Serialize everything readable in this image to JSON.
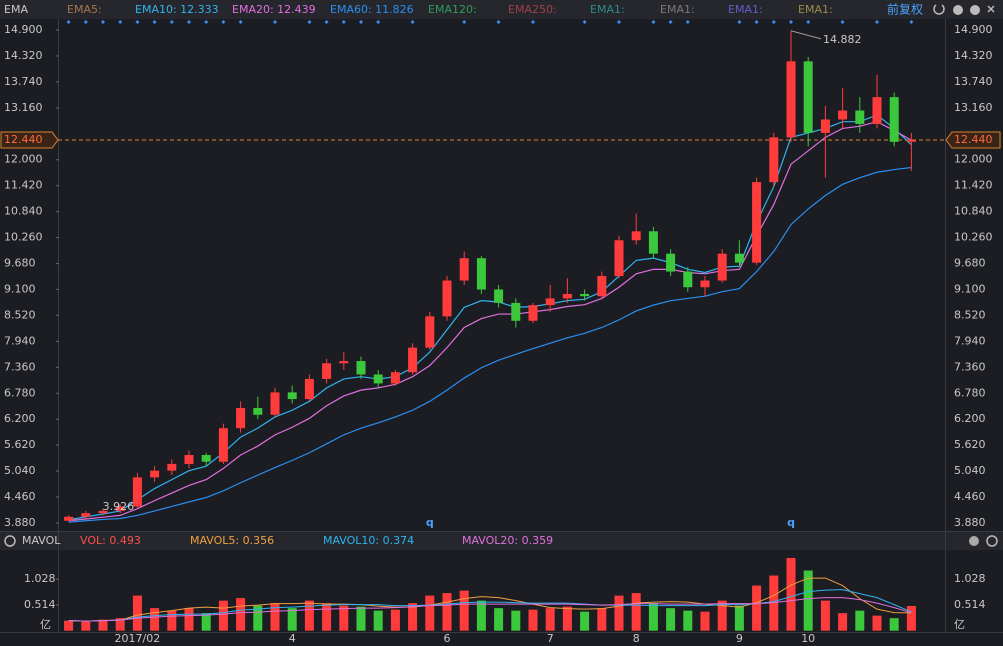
{
  "chart_data": [
    {
      "type": "candlestick",
      "indicator": "EMA",
      "adjust": "前复权",
      "legend": [
        {
          "text": "EMA5:",
          "color": "#a8744e"
        },
        {
          "text": "EMA10: 12.333",
          "color": "#2fb4f0"
        },
        {
          "text": "EMA20: 12.439",
          "color": "#e070e0"
        },
        {
          "text": "EMA60: 11.826",
          "color": "#2a8ff0"
        },
        {
          "text": "EMA120:",
          "color": "#2e9c5a"
        },
        {
          "text": "EMA250:",
          "color": "#a0404a"
        },
        {
          "text": "EMA1:",
          "color": "#2e8a8a"
        },
        {
          "text": "EMA1:",
          "color": "#7a7a7a"
        },
        {
          "text": "EMA1:",
          "color": "#6a5acd"
        },
        {
          "text": "EMA1:",
          "color": "#a08a4a"
        }
      ],
      "up_color": "#ff3b3b",
      "down_color": "#3cc83c",
      "candles": {
        "open": [
          3.93,
          4.02,
          4.1,
          4.15,
          4.25,
          4.9,
          5.05,
          5.2,
          5.4,
          5.25,
          6.0,
          6.45,
          6.3,
          6.8,
          6.65,
          7.1,
          7.45,
          7.5,
          7.2,
          7.0,
          7.25,
          7.8,
          8.5,
          9.3,
          9.8,
          9.1,
          8.8,
          8.4,
          8.75,
          8.9,
          9.0,
          8.95,
          9.4,
          10.2,
          10.4,
          9.9,
          9.5,
          9.15,
          9.3,
          9.9,
          9.7,
          11.5,
          12.5,
          14.2,
          12.6,
          12.9,
          13.1,
          12.8,
          13.4,
          12.4
        ],
        "high": [
          4.05,
          4.15,
          4.2,
          4.3,
          5.0,
          5.15,
          5.3,
          5.5,
          5.45,
          6.1,
          6.6,
          6.7,
          6.9,
          6.95,
          7.2,
          7.55,
          7.7,
          7.6,
          7.3,
          7.3,
          7.9,
          8.6,
          9.4,
          9.95,
          9.85,
          9.2,
          8.9,
          8.8,
          9.2,
          9.35,
          9.1,
          9.5,
          10.3,
          10.8,
          10.5,
          10.0,
          9.6,
          9.4,
          10.0,
          10.2,
          11.6,
          12.6,
          14.882,
          14.3,
          13.2,
          13.6,
          13.4,
          13.9,
          13.5,
          12.6
        ],
        "low": [
          3.926,
          3.98,
          4.05,
          4.1,
          4.2,
          4.8,
          4.95,
          5.1,
          5.15,
          5.2,
          5.9,
          6.2,
          6.25,
          6.55,
          6.6,
          7.0,
          7.3,
          7.1,
          6.9,
          6.95,
          7.2,
          7.75,
          8.4,
          9.2,
          9.0,
          8.7,
          8.25,
          8.35,
          8.6,
          8.8,
          8.85,
          8.9,
          9.35,
          10.1,
          9.8,
          9.4,
          9.05,
          8.95,
          9.25,
          9.6,
          9.65,
          11.4,
          12.4,
          12.3,
          11.6,
          12.7,
          12.6,
          12.7,
          12.3,
          11.75
        ],
        "close": [
          4.02,
          4.1,
          4.15,
          4.25,
          4.9,
          5.05,
          5.2,
          5.4,
          5.25,
          6.0,
          6.45,
          6.3,
          6.8,
          6.65,
          7.1,
          7.45,
          7.5,
          7.2,
          7.0,
          7.25,
          7.8,
          8.5,
          9.3,
          9.8,
          9.1,
          8.8,
          8.4,
          8.75,
          8.9,
          9.0,
          8.95,
          9.4,
          10.2,
          10.4,
          9.9,
          9.5,
          9.15,
          9.3,
          9.9,
          9.7,
          11.5,
          12.5,
          14.2,
          12.6,
          12.9,
          13.1,
          12.8,
          13.4,
          12.4,
          12.44
        ]
      },
      "series": [
        {
          "name": "EMA10",
          "color": "#2fb4f0",
          "values": [
            3.95,
            4.02,
            4.08,
            4.15,
            4.4,
            4.65,
            4.85,
            5.05,
            5.15,
            5.45,
            5.8,
            6.0,
            6.25,
            6.4,
            6.6,
            6.9,
            7.1,
            7.15,
            7.1,
            7.15,
            7.35,
            7.7,
            8.2,
            8.7,
            8.85,
            8.82,
            8.7,
            8.72,
            8.78,
            8.85,
            8.88,
            9.05,
            9.4,
            9.75,
            9.8,
            9.7,
            9.55,
            9.48,
            9.6,
            9.62,
            10.6,
            11.4,
            12.5,
            12.6,
            12.7,
            12.85,
            12.85,
            13.0,
            12.7,
            12.333
          ]
        },
        {
          "name": "EMA20",
          "color": "#e070e0",
          "values": [
            3.93,
            3.97,
            4.01,
            4.05,
            4.2,
            4.38,
            4.55,
            4.72,
            4.85,
            5.1,
            5.4,
            5.6,
            5.85,
            6.02,
            6.22,
            6.5,
            6.72,
            6.85,
            6.9,
            6.98,
            7.15,
            7.4,
            7.8,
            8.25,
            8.45,
            8.55,
            8.55,
            8.6,
            8.65,
            8.72,
            8.76,
            8.9,
            9.15,
            9.45,
            9.55,
            9.55,
            9.48,
            9.45,
            9.52,
            9.55,
            10.3,
            11.0,
            11.9,
            12.2,
            12.5,
            12.7,
            12.75,
            12.85,
            12.65,
            12.439
          ]
        },
        {
          "name": "EMA60",
          "color": "#2a8ff0",
          "values": [
            3.9,
            3.93,
            3.96,
            3.98,
            4.05,
            4.15,
            4.25,
            4.35,
            4.45,
            4.6,
            4.78,
            4.95,
            5.12,
            5.28,
            5.45,
            5.65,
            5.85,
            6.0,
            6.12,
            6.25,
            6.4,
            6.6,
            6.85,
            7.12,
            7.35,
            7.52,
            7.65,
            7.78,
            7.9,
            8.02,
            8.12,
            8.25,
            8.42,
            8.62,
            8.75,
            8.85,
            8.9,
            8.95,
            9.05,
            9.12,
            9.5,
            9.95,
            10.55,
            10.9,
            11.2,
            11.45,
            11.6,
            11.72,
            11.78,
            11.826
          ]
        }
      ],
      "ylim": [
        3.88,
        14.9
      ],
      "yticks": [
        {
          "value": 3.88,
          "label": "3.880"
        },
        {
          "value": 4.46,
          "label": "4.460"
        },
        {
          "value": 5.04,
          "label": "5.040"
        },
        {
          "value": 5.62,
          "label": "5.620"
        },
        {
          "value": 6.2,
          "label": "6.200"
        },
        {
          "value": 6.78,
          "label": "6.780"
        },
        {
          "value": 7.36,
          "label": "7.360"
        },
        {
          "value": 7.94,
          "label": "7.940"
        },
        {
          "value": 8.52,
          "label": "8.520"
        },
        {
          "value": 9.1,
          "label": "9.100"
        },
        {
          "value": 9.68,
          "label": "9.680"
        },
        {
          "value": 10.26,
          "label": "10.260"
        },
        {
          "value": 10.84,
          "label": "10.840"
        },
        {
          "value": 11.42,
          "label": "11.420"
        },
        {
          "value": 12,
          "label": "12.000"
        },
        {
          "value": 13.16,
          "label": "13.160"
        },
        {
          "value": 13.74,
          "label": "13.740"
        },
        {
          "value": 14.32,
          "label": "14.320"
        },
        {
          "value": 14.9,
          "label": "14.900"
        }
      ],
      "last_price": {
        "value": 12.44,
        "label": "12.440"
      },
      "annotations": [
        {
          "text": "14.882",
          "index": 42
        },
        {
          "text": "3.926",
          "index": 0
        }
      ],
      "signals": [
        {
          "text": "q",
          "index": 21
        },
        {
          "text": "q",
          "index": 42
        }
      ]
    },
    {
      "type": "bar",
      "indicator": "MAVOL",
      "legend": [
        {
          "text": "VOL: 0.493",
          "color": "#ff5050"
        },
        {
          "text": "MAVOL5: 0.356",
          "color": "#f0a040"
        },
        {
          "text": "MAVOL10: 0.374",
          "color": "#2fb4f0"
        },
        {
          "text": "MAVOL20: 0.359",
          "color": "#e070e0"
        }
      ],
      "categories": [
        null,
        null,
        null,
        null,
        "2017/02",
        null,
        null,
        null,
        null,
        null,
        null,
        null,
        null,
        "4",
        null,
        null,
        null,
        null,
        null,
        null,
        null,
        null,
        "6",
        null,
        null,
        null,
        null,
        null,
        "7",
        null,
        null,
        null,
        null,
        "8",
        null,
        null,
        null,
        null,
        null,
        "9",
        null,
        null,
        null,
        "10",
        null,
        null,
        null,
        null,
        null,
        null
      ],
      "values": [
        0.2,
        0.18,
        0.22,
        0.25,
        0.7,
        0.45,
        0.4,
        0.45,
        0.35,
        0.6,
        0.65,
        0.5,
        0.55,
        0.45,
        0.6,
        0.55,
        0.5,
        0.48,
        0.4,
        0.42,
        0.55,
        0.7,
        0.75,
        0.8,
        0.6,
        0.45,
        0.4,
        0.42,
        0.45,
        0.48,
        0.38,
        0.45,
        0.7,
        0.75,
        0.55,
        0.45,
        0.4,
        0.38,
        0.6,
        0.5,
        0.9,
        1.1,
        1.45,
        1.2,
        0.6,
        0.35,
        0.4,
        0.3,
        0.25,
        0.493
      ],
      "series": [
        {
          "name": "MAVOL5",
          "color": "#f0a040",
          "values": [
            0.2,
            0.19,
            0.2,
            0.21,
            0.31,
            0.36,
            0.4,
            0.45,
            0.47,
            0.45,
            0.49,
            0.51,
            0.54,
            0.54,
            0.55,
            0.53,
            0.53,
            0.52,
            0.49,
            0.47,
            0.47,
            0.51,
            0.57,
            0.64,
            0.68,
            0.66,
            0.6,
            0.53,
            0.46,
            0.44,
            0.43,
            0.44,
            0.49,
            0.55,
            0.57,
            0.58,
            0.57,
            0.53,
            0.5,
            0.47,
            0.56,
            0.7,
            0.91,
            1.05,
            1.05,
            0.9,
            0.64,
            0.43,
            0.36,
            0.356
          ]
        },
        {
          "name": "MAVOL10",
          "color": "#2fb4f0",
          "values": [
            0.2,
            0.19,
            0.2,
            0.21,
            0.27,
            0.3,
            0.32,
            0.33,
            0.33,
            0.36,
            0.41,
            0.43,
            0.46,
            0.47,
            0.49,
            0.51,
            0.52,
            0.52,
            0.52,
            0.5,
            0.5,
            0.51,
            0.53,
            0.56,
            0.57,
            0.57,
            0.56,
            0.55,
            0.55,
            0.55,
            0.53,
            0.51,
            0.51,
            0.51,
            0.5,
            0.5,
            0.5,
            0.5,
            0.52,
            0.52,
            0.54,
            0.58,
            0.68,
            0.78,
            0.81,
            0.82,
            0.74,
            0.66,
            0.52,
            0.374
          ]
        },
        {
          "name": "MAVOL20",
          "color": "#e070e0",
          "values": [
            0.2,
            0.19,
            0.2,
            0.21,
            0.25,
            0.27,
            0.29,
            0.3,
            0.31,
            0.33,
            0.36,
            0.37,
            0.39,
            0.4,
            0.42,
            0.43,
            0.44,
            0.45,
            0.45,
            0.46,
            0.48,
            0.5,
            0.51,
            0.53,
            0.53,
            0.53,
            0.53,
            0.53,
            0.53,
            0.53,
            0.52,
            0.51,
            0.52,
            0.54,
            0.54,
            0.53,
            0.53,
            0.53,
            0.54,
            0.54,
            0.54,
            0.56,
            0.6,
            0.64,
            0.66,
            0.66,
            0.62,
            0.55,
            0.46,
            0.359
          ]
        }
      ],
      "ylim": [
        0,
        1.53
      ],
      "yticks": [
        0.514,
        1.028
      ],
      "y_unit": "亿"
    }
  ]
}
